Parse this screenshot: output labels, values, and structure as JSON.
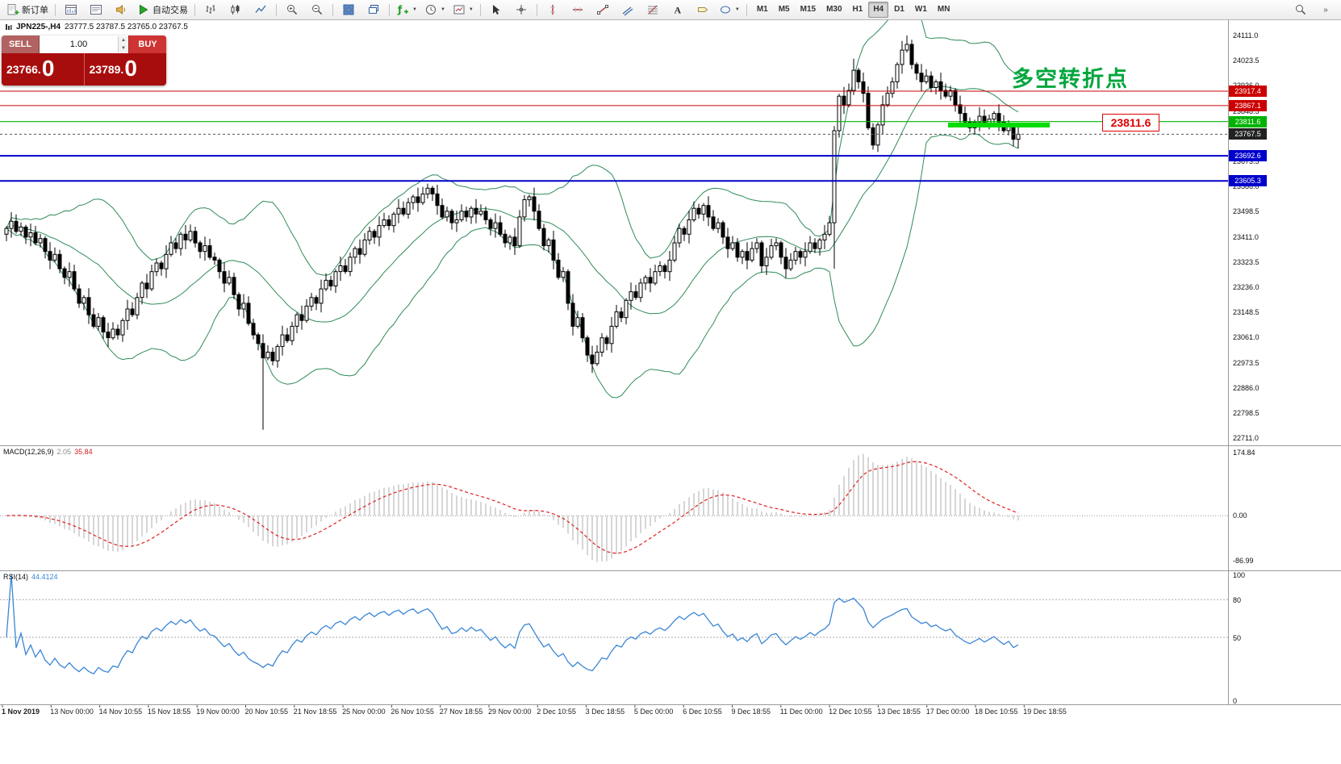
{
  "toolbar": {
    "new_order_label": "新订单",
    "autotrading_label": "自动交易",
    "timeframes": [
      "M1",
      "M5",
      "M15",
      "M30",
      "H1",
      "H4",
      "D1",
      "W1",
      "MN"
    ],
    "active_timeframe": "H4",
    "icons": [
      "new-order-icon",
      "market-watch-icon",
      "data-window-icon",
      "alerts-icon",
      "autotrading-icon",
      "bar-chart-icon",
      "candlestick-chart-icon",
      "line-chart-icon",
      "zoom-in-icon",
      "zoom-out-icon",
      "tile-windows-icon",
      "cascade-windows-icon",
      "indicators-icon",
      "periods-icon",
      "templates-icon",
      "cursor-icon",
      "crosshair-icon",
      "vertical-line-icon",
      "horizontal-line-icon",
      "trendline-icon",
      "channel-icon",
      "fibonacci-icon",
      "text-icon",
      "label-icon",
      "shapes-icon",
      "search-icon",
      "more-icon"
    ]
  },
  "symbol_bar": {
    "symbol": "JPN225-,H4",
    "ohlc": "23777.5 23787.5 23765.0 23767.5"
  },
  "trade_panel": {
    "sell_label": "SELL",
    "buy_label": "BUY",
    "volume": "1.00",
    "sell_price_main": "23766.",
    "sell_price_big": "0",
    "buy_price_main": "23789.",
    "buy_price_big": "0"
  },
  "indicators": {
    "macd_label": "MACD(12,26,9)",
    "macd_v1": "2.05",
    "macd_v2": "35.84",
    "rsi_label": "RSI(14)",
    "rsi_value": "44.4124"
  },
  "annotations": {
    "cjk_note": "多空转折点",
    "price_callout": "23811.6",
    "highlight_segment": {
      "price": 23800,
      "start_index": 195,
      "end_index": 215,
      "color": "#00DC00",
      "thickness": 6
    }
  },
  "levels": [
    {
      "price": 23917.4,
      "label": "23917.4",
      "color": "#CC0000",
      "width": 1
    },
    {
      "price": 23867.1,
      "label": "23867.1",
      "color": "#CC0000",
      "width": 1
    },
    {
      "price": 23811.6,
      "label": "23811.6",
      "color": "#00B300",
      "width": 1.2
    },
    {
      "price": 23692.6,
      "label": "23692.6",
      "color": "#0000CC",
      "width": 2
    },
    {
      "price": 23605.3,
      "label": "23605.3",
      "color": "#0000CC",
      "width": 2
    }
  ],
  "current_price": {
    "value": 23767.5,
    "label": "23767.5",
    "color": "#222222"
  },
  "axes": {
    "price_labels": [
      "24111.0",
      "24023.5",
      "23936.0",
      "23848.5",
      "23761.0",
      "23673.5",
      "23586.0",
      "23498.5",
      "23411.0",
      "23323.5",
      "23236.0",
      "23148.5",
      "23061.0",
      "22973.5",
      "22886.0",
      "22798.5",
      "22711.0"
    ],
    "macd_labels": [
      "174.84",
      "0.00",
      "-86.99"
    ],
    "rsi_labels": [
      "100",
      "80",
      "50",
      "0"
    ],
    "time_labels": [
      "1 Nov 2019",
      "13 Nov 00:00",
      "14 Nov 10:55",
      "15 Nov 18:55",
      "19 Nov 00:00",
      "20 Nov 10:55",
      "21 Nov 18:55",
      "25 Nov 00:00",
      "26 Nov 10:55",
      "27 Nov 18:55",
      "29 Nov 00:00",
      "2 Dec 10:55",
      "3 Dec 18:55",
      "5 Dec 00:00",
      "6 Dec 10:55",
      "9 Dec 18:55",
      "11 Dec 00:00",
      "12 Dec 10:55",
      "13 Dec 18:55",
      "17 Dec 00:00",
      "18 Dec 10:55",
      "19 Dec 18:55"
    ]
  },
  "chart_data": {
    "type": "candlestick",
    "symbol": "JPN225- H4 with Bollinger Bands(20,2), MACD(12,26,9), RSI(14)",
    "price_axis": {
      "min": 22711.0,
      "max": 24111.0,
      "step": 87.5
    },
    "open_first": 23420,
    "closes": [
      23440,
      23465,
      23430,
      23445,
      23410,
      23425,
      23390,
      23405,
      23360,
      23330,
      23350,
      23300,
      23270,
      23290,
      23230,
      23180,
      23200,
      23140,
      23100,
      23130,
      23080,
      23060,
      23090,
      23070,
      23120,
      23160,
      23140,
      23200,
      23250,
      23230,
      23290,
      23320,
      23300,
      23350,
      23390,
      23370,
      23420,
      23400,
      23430,
      23390,
      23360,
      23380,
      23340,
      23330,
      23290,
      23250,
      23270,
      23210,
      23160,
      23180,
      23110,
      23070,
      23040,
      22990,
      23010,
      22980,
      23030,
      23070,
      23050,
      23100,
      23140,
      23120,
      23170,
      23200,
      23180,
      23230,
      23260,
      23240,
      23290,
      23310,
      23290,
      23340,
      23370,
      23350,
      23400,
      23430,
      23410,
      23450,
      23470,
      23450,
      23490,
      23510,
      23490,
      23530,
      23550,
      23530,
      23560,
      23580,
      23560,
      23520,
      23480,
      23500,
      23460,
      23470,
      23500,
      23480,
      23510,
      23490,
      23500,
      23470,
      23440,
      23460,
      23420,
      23390,
      23410,
      23380,
      23480,
      23540,
      23550,
      23500,
      23440,
      23380,
      23400,
      23330,
      23270,
      23290,
      23180,
      23100,
      23130,
      23060,
      23000,
      22970,
      23010,
      23060,
      23040,
      23100,
      23150,
      23130,
      23190,
      23220,
      23200,
      23250,
      23270,
      23250,
      23290,
      23310,
      23290,
      23330,
      23390,
      23440,
      23420,
      23470,
      23510,
      23490,
      23520,
      23480,
      23440,
      23460,
      23410,
      23370,
      23390,
      23340,
      23360,
      23330,
      23370,
      23390,
      23310,
      23340,
      23380,
      23390,
      23340,
      23300,
      23330,
      23360,
      23340,
      23360,
      23390,
      23370,
      23400,
      23420,
      23460,
      23780,
      23900,
      23870,
      23920,
      23990,
      23950,
      23910,
      23790,
      23730,
      23800,
      23870,
      23910,
      23950,
      24010,
      24060,
      24080,
      24010,
      23980,
      23950,
      23970,
      23930,
      23950,
      23920,
      23900,
      23920,
      23870,
      23840,
      23810,
      23790,
      23810,
      23830,
      23800,
      23820,
      23840,
      23810,
      23780,
      23800,
      23750,
      23767.5
    ],
    "spikes": [
      {
        "i": 53,
        "low": 22740
      },
      {
        "i": 121,
        "low": 22940
      },
      {
        "i": 171,
        "low": 23300
      },
      {
        "i": 175,
        "high": 24030
      },
      {
        "i": 186,
        "high": 24111
      }
    ],
    "bollinger": {
      "period": 20,
      "deviation": 2,
      "color": "#2E8B57"
    },
    "macd": {
      "fast": 12,
      "slow": 26,
      "signal": 9,
      "current_main": 2.05,
      "current_signal": 35.84,
      "axis_max": 174.84,
      "axis_min": -86.99,
      "hist_color": "#c4c4c4",
      "signal_color": "#e02020"
    },
    "rsi": {
      "period": 14,
      "current": 44.4124,
      "levels": [
        80,
        50
      ],
      "color": "#3a86d4",
      "axis": [
        100,
        80,
        50,
        0
      ]
    }
  }
}
